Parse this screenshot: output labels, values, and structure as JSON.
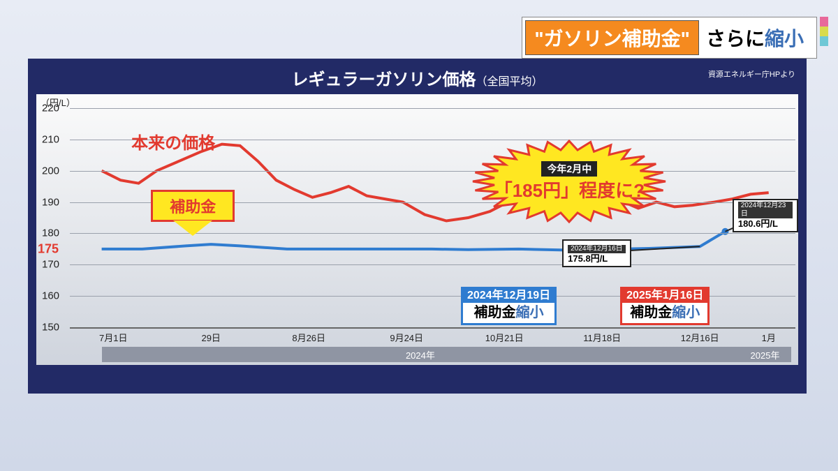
{
  "title_bar": {
    "chip_text": "\"ガソリン補助金\"",
    "chip_bg": "#f58a1f",
    "rest_1": " さらに",
    "rest_2_blue": "縮小"
  },
  "accent_colors": [
    "#e8699a",
    "#d9db4c",
    "#6fc8d6"
  ],
  "chart": {
    "title_main": "レギュラーガソリン価格",
    "title_sub": "（全国平均）",
    "source": "資源エネルギー庁HPより",
    "panel_bg": "#222a66",
    "y_unit": "（円/L）",
    "ylim": [
      150,
      220
    ],
    "y_ticks": [
      150,
      160,
      170,
      180,
      190,
      200,
      210,
      220
    ],
    "y_highlight": {
      "value": 175,
      "label": "175",
      "color": "#e23a2f"
    },
    "x_ticks": [
      {
        "pos": 0.06,
        "label": "7月1日"
      },
      {
        "pos": 0.195,
        "label": "29日"
      },
      {
        "pos": 0.33,
        "label": "8月26日"
      },
      {
        "pos": 0.465,
        "label": "9月24日"
      },
      {
        "pos": 0.6,
        "label": "10月21日"
      },
      {
        "pos": 0.735,
        "label": "11月18日"
      },
      {
        "pos": 0.87,
        "label": "12月16日"
      },
      {
        "pos": 0.965,
        "label": "1月"
      }
    ],
    "year_bars": [
      {
        "label": "2024年",
        "left": 0.044,
        "width": 0.88
      },
      {
        "label": "2025年",
        "left": 0.924,
        "width": 0.072
      }
    ],
    "series": {
      "original_price": {
        "label": "本来の価格",
        "color": "#e23a2f",
        "width": 4,
        "points": [
          [
            0.044,
            200
          ],
          [
            0.07,
            197
          ],
          [
            0.095,
            196
          ],
          [
            0.12,
            200
          ],
          [
            0.15,
            203
          ],
          [
            0.18,
            206
          ],
          [
            0.21,
            208.5
          ],
          [
            0.235,
            208
          ],
          [
            0.26,
            203
          ],
          [
            0.285,
            197
          ],
          [
            0.31,
            194
          ],
          [
            0.335,
            191.5
          ],
          [
            0.36,
            193
          ],
          [
            0.385,
            195
          ],
          [
            0.41,
            192
          ],
          [
            0.435,
            191
          ],
          [
            0.46,
            190
          ],
          [
            0.49,
            186
          ],
          [
            0.52,
            184
          ],
          [
            0.55,
            185
          ],
          [
            0.58,
            187
          ],
          [
            0.605,
            190
          ],
          [
            0.63,
            193
          ],
          [
            0.655,
            192.5
          ],
          [
            0.68,
            189
          ],
          [
            0.71,
            187
          ],
          [
            0.735,
            191
          ],
          [
            0.76,
            190.5
          ],
          [
            0.785,
            188
          ],
          [
            0.81,
            190
          ],
          [
            0.835,
            188.5
          ],
          [
            0.86,
            189
          ],
          [
            0.89,
            190
          ],
          [
            0.915,
            191
          ],
          [
            0.94,
            192.5
          ],
          [
            0.965,
            193
          ]
        ]
      },
      "subsidized_price": {
        "color": "#2f7cd0",
        "width": 4,
        "points": [
          [
            0.044,
            175
          ],
          [
            0.1,
            175
          ],
          [
            0.16,
            176
          ],
          [
            0.195,
            176.5
          ],
          [
            0.235,
            176
          ],
          [
            0.3,
            175
          ],
          [
            0.4,
            175
          ],
          [
            0.5,
            175
          ],
          [
            0.55,
            174.8
          ],
          [
            0.62,
            175
          ],
          [
            0.7,
            174.6
          ],
          [
            0.76,
            175
          ],
          [
            0.8,
            175.2
          ],
          [
            0.835,
            175.5
          ],
          [
            0.87,
            175.8
          ],
          [
            0.905,
            180.6
          ]
        ],
        "end_dot": true
      }
    }
  },
  "annotations": {
    "original_price_label": {
      "text": "本来の価格",
      "x": 0.085,
      "y_val": 207
    },
    "subsidy_arrow": {
      "text": "補助金",
      "x": 0.17,
      "y_val": 194
    },
    "starburst": {
      "x": 0.55,
      "y_val": 211,
      "small": "今年2月中",
      "big": "「185円」程度に?",
      "fill": "#ffe721",
      "stroke": "#e23a2f"
    },
    "callout1": {
      "x": 0.68,
      "y_val": 178,
      "date": "2024年12月16日",
      "value": "175.8円/L",
      "leader_to": [
        0.87,
        175.8
      ]
    },
    "callout2": {
      "x": 0.915,
      "y_val": 191,
      "date": "2024年12月23日",
      "value": "180.6円/L",
      "leader_to": [
        0.905,
        180.6
      ]
    },
    "badge_blue": {
      "x": 0.54,
      "y_val": 163,
      "border": "#2f7cd0",
      "top_bg": "#2f7cd0",
      "date": "2024年12月19日",
      "line1": "補助金",
      "line2_blue": "縮小"
    },
    "badge_red": {
      "x": 0.76,
      "y_val": 163,
      "border": "#e23a2f",
      "top_bg": "#e23a2f",
      "date": "2025年1月16日",
      "line1": "補助金",
      "line2_blue": "縮小"
    }
  }
}
